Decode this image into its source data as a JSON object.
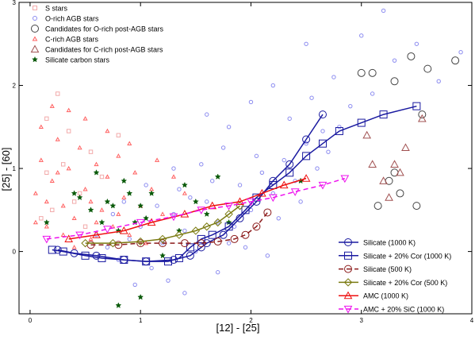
{
  "chart_data": {
    "type": "scatter",
    "title": "",
    "xlabel": "[12] - [25]",
    "ylabel": "[25] - [60]",
    "xlim": [
      -0.1,
      4.0
    ],
    "ylim": [
      -0.75,
      3.0
    ],
    "xticks": [
      "0",
      "1",
      "2",
      "3",
      "4"
    ],
    "yticks": [
      "0",
      "1",
      "2",
      "3"
    ],
    "grid": false,
    "scatter_legend_position": "top-left",
    "line_legend_position": "bottom-right",
    "scatter_series": [
      {
        "name": "S stars",
        "marker": "square",
        "color": "#f2aaaa",
        "points": [
          [
            0.15,
            0.95
          ],
          [
            0.3,
            1.05
          ],
          [
            0.45,
            0.7
          ],
          [
            0.2,
            0.5
          ],
          [
            0.55,
            1.2
          ],
          [
            0.1,
            0.4
          ],
          [
            0.65,
            0.9
          ],
          [
            0.35,
            1.45
          ],
          [
            0.25,
            1.9
          ],
          [
            0.5,
            0.3
          ],
          [
            0.8,
            1.4
          ],
          [
            0.15,
            1.6
          ],
          [
            0.4,
            0.6
          ]
        ]
      },
      {
        "name": "O-rich AGB stars",
        "marker": "circle",
        "color": "#8c8cf0",
        "points": [
          [
            0.6,
            0.2
          ],
          [
            0.7,
            0.05
          ],
          [
            0.8,
            -0.1
          ],
          [
            0.9,
            0.15
          ],
          [
            1.0,
            0.3
          ],
          [
            1.1,
            -0.2
          ],
          [
            1.2,
            0.1
          ],
          [
            1.3,
            0.45
          ],
          [
            1.4,
            0.25
          ],
          [
            1.5,
            0.0
          ],
          [
            1.6,
            0.6
          ],
          [
            1.7,
            0.35
          ],
          [
            1.8,
            0.1
          ],
          [
            1.9,
            0.8
          ],
          [
            2.0,
            0.5
          ],
          [
            2.1,
            0.95
          ],
          [
            2.2,
            0.7
          ],
          [
            2.3,
            1.1
          ],
          [
            2.4,
            0.85
          ],
          [
            2.5,
            1.3
          ],
          [
            2.6,
            1.0
          ],
          [
            2.7,
            1.2
          ],
          [
            2.8,
            1.5
          ],
          [
            1.25,
            -0.35
          ],
          [
            1.45,
            0.65
          ],
          [
            1.65,
            0.85
          ],
          [
            1.85,
            0.3
          ],
          [
            2.05,
            1.15
          ],
          [
            2.25,
            0.4
          ],
          [
            2.45,
            0.6
          ],
          [
            2.65,
            1.45
          ],
          [
            2.9,
            1.75
          ],
          [
            3.1,
            1.9
          ],
          [
            3.3,
            2.3
          ],
          [
            3.5,
            2.5
          ],
          [
            3.7,
            2.05
          ],
          [
            3.9,
            2.4
          ],
          [
            1.15,
            0.55
          ],
          [
            1.35,
            0.75
          ],
          [
            1.55,
            1.05
          ],
          [
            1.75,
            1.25
          ],
          [
            1.95,
            0.05
          ],
          [
            2.15,
            -0.05
          ],
          [
            0.95,
            -0.4
          ],
          [
            1.05,
            0.8
          ],
          [
            1.4,
            -0.5
          ],
          [
            1.7,
            -0.25
          ],
          [
            2.35,
            1.6
          ],
          [
            2.55,
            1.85
          ],
          [
            2.75,
            2.1
          ],
          [
            3.0,
            2.6
          ],
          [
            3.2,
            2.9
          ],
          [
            1.8,
            1.5
          ],
          [
            2.0,
            1.8
          ],
          [
            1.3,
            1.0
          ],
          [
            0.75,
            0.45
          ],
          [
            0.85,
            0.6
          ],
          [
            1.6,
            1.65
          ],
          [
            2.2,
            2.0
          ],
          [
            2.5,
            2.5
          ]
        ]
      },
      {
        "name": "Candidates for O-rich post-AGB stars",
        "marker": "circle-large",
        "color": "#444444",
        "points": [
          [
            3.0,
            2.15
          ],
          [
            3.1,
            2.15
          ],
          [
            3.3,
            2.05
          ],
          [
            3.45,
            2.35
          ],
          [
            3.6,
            2.2
          ],
          [
            3.85,
            2.3
          ],
          [
            3.55,
            1.65
          ],
          [
            3.25,
            0.85
          ],
          [
            3.35,
            0.7
          ],
          [
            3.15,
            0.55
          ],
          [
            3.5,
            0.55
          ],
          [
            3.3,
            0.95
          ]
        ]
      },
      {
        "name": "C-rich AGB stars",
        "marker": "triangle",
        "color": "#ff6060",
        "points": [
          [
            0.05,
            0.7
          ],
          [
            0.1,
            1.1
          ],
          [
            0.15,
            0.3
          ],
          [
            0.2,
            0.85
          ],
          [
            0.25,
            1.35
          ],
          [
            0.3,
            0.55
          ],
          [
            0.35,
            1.0
          ],
          [
            0.4,
            0.4
          ],
          [
            0.45,
            1.25
          ],
          [
            0.5,
            0.75
          ],
          [
            0.55,
            0.15
          ],
          [
            0.6,
            1.05
          ],
          [
            0.65,
            0.5
          ],
          [
            0.7,
            0.9
          ],
          [
            0.75,
            0.3
          ],
          [
            0.8,
            1.15
          ],
          [
            0.85,
            0.65
          ],
          [
            0.9,
            0.2
          ],
          [
            0.95,
            0.95
          ],
          [
            1.0,
            0.55
          ],
          [
            1.05,
            0.1
          ],
          [
            1.1,
            0.75
          ],
          [
            1.2,
            0.45
          ],
          [
            1.3,
            0.9
          ],
          [
            0.1,
            1.5
          ],
          [
            0.2,
            1.75
          ],
          [
            0.3,
            0.2
          ],
          [
            0.5,
            1.6
          ],
          [
            0.7,
            1.45
          ],
          [
            0.4,
            0.05
          ],
          [
            0.15,
            0.6
          ],
          [
            0.25,
            0.95
          ],
          [
            0.6,
            0.35
          ],
          [
            0.8,
            0.45
          ],
          [
            1.15,
            1.1
          ],
          [
            1.4,
            0.7
          ],
          [
            0.05,
            0.35
          ],
          [
            0.35,
            1.7
          ],
          [
            0.55,
            0.6
          ],
          [
            0.9,
            1.3
          ]
        ]
      },
      {
        "name": "Candidates for C-rich post-AGB stars",
        "marker": "triangle-large",
        "color": "#a05050",
        "points": [
          [
            3.05,
            1.4
          ],
          [
            3.1,
            1.05
          ],
          [
            3.2,
            0.85
          ],
          [
            3.25,
            0.65
          ],
          [
            3.35,
            0.95
          ],
          [
            3.4,
            1.25
          ],
          [
            3.55,
            1.6
          ],
          [
            3.3,
            1.05
          ]
        ]
      },
      {
        "name": "Silicate carbon stars",
        "marker": "star",
        "color": "#0a5a0a",
        "points": [
          [
            0.15,
            0.35
          ],
          [
            0.4,
            0.7
          ],
          [
            0.45,
            0.65
          ],
          [
            0.55,
            0.5
          ],
          [
            0.6,
            0.95
          ],
          [
            0.65,
            0.35
          ],
          [
            0.7,
            0.6
          ],
          [
            0.75,
            0.55
          ],
          [
            0.8,
            0.25
          ],
          [
            0.85,
            0.85
          ],
          [
            0.9,
            0.7
          ],
          [
            0.95,
            0.35
          ],
          [
            1.0,
            0.55
          ],
          [
            1.05,
            0.4
          ],
          [
            1.1,
            0.7
          ],
          [
            1.2,
            -0.05
          ],
          [
            1.35,
            0.25
          ],
          [
            1.4,
            0.8
          ],
          [
            1.5,
            0.6
          ],
          [
            1.6,
            0.45
          ],
          [
            1.7,
            0.9
          ],
          [
            1.8,
            0.35
          ],
          [
            2.45,
            0.85
          ],
          [
            0.8,
            -0.65
          ],
          [
            1.0,
            -0.55
          ]
        ]
      }
    ],
    "line_series": [
      {
        "name": "Silicate (1000 K)",
        "color": "#1a1aa0",
        "dash": "solid",
        "marker": "circle",
        "points": [
          [
            0.25,
            0.02
          ],
          [
            0.4,
            -0.02
          ],
          [
            0.6,
            -0.05
          ],
          [
            0.85,
            -0.1
          ],
          [
            1.05,
            -0.12
          ],
          [
            1.3,
            -0.1
          ],
          [
            1.45,
            -0.05
          ],
          [
            1.55,
            0.05
          ],
          [
            1.6,
            0.1
          ],
          [
            1.75,
            0.2
          ],
          [
            1.9,
            0.4
          ],
          [
            2.05,
            0.6
          ],
          [
            2.2,
            0.85
          ],
          [
            2.35,
            1.05
          ],
          [
            2.5,
            1.35
          ],
          [
            2.65,
            1.65
          ]
        ]
      },
      {
        "name": "Silicate + 20% Cor (1000 K)",
        "color": "#1a1aa0",
        "dash": "solid",
        "marker": "square",
        "points": [
          [
            0.2,
            0.02
          ],
          [
            0.3,
            0.0
          ],
          [
            0.5,
            -0.05
          ],
          [
            0.65,
            -0.08
          ],
          [
            0.85,
            -0.1
          ],
          [
            1.05,
            -0.12
          ],
          [
            1.25,
            -0.12
          ],
          [
            1.35,
            -0.08
          ],
          [
            1.45,
            0.05
          ],
          [
            1.55,
            0.15
          ],
          [
            1.65,
            0.2
          ],
          [
            1.8,
            0.3
          ],
          [
            1.95,
            0.5
          ],
          [
            2.05,
            0.65
          ],
          [
            2.2,
            0.8
          ],
          [
            2.35,
            0.95
          ],
          [
            2.5,
            1.15
          ],
          [
            2.65,
            1.3
          ],
          [
            2.8,
            1.45
          ],
          [
            3.0,
            1.55
          ],
          [
            3.2,
            1.65
          ],
          [
            3.5,
            1.75
          ]
        ]
      },
      {
        "name": "Silicate (500 K)",
        "color": "#8b1a1a",
        "dash": "dashed",
        "marker": "circle",
        "points": [
          [
            0.55,
            0.08
          ],
          [
            0.8,
            0.08
          ],
          [
            1.0,
            0.1
          ],
          [
            1.2,
            0.1
          ],
          [
            1.4,
            0.1
          ],
          [
            1.55,
            0.1
          ],
          [
            1.7,
            0.12
          ],
          [
            1.85,
            0.15
          ],
          [
            1.95,
            0.2
          ],
          [
            2.05,
            0.3
          ],
          [
            2.15,
            0.47
          ]
        ]
      },
      {
        "name": "Silicate + 20% Cor (500 K)",
        "color": "#7a7a10",
        "dash": "solid",
        "marker": "diamond",
        "points": [
          [
            0.5,
            0.1
          ],
          [
            0.75,
            0.1
          ],
          [
            1.0,
            0.12
          ],
          [
            1.2,
            0.15
          ],
          [
            1.35,
            0.2
          ],
          [
            1.5,
            0.25
          ],
          [
            1.6,
            0.3
          ],
          [
            1.7,
            0.35
          ],
          [
            1.8,
            0.45
          ],
          [
            1.9,
            0.55
          ]
        ]
      },
      {
        "name": "AMC (1000 K)",
        "color": "#ee1010",
        "dash": "solid",
        "marker": "triangle",
        "points": [
          [
            0.35,
            0.15
          ],
          [
            0.6,
            0.2
          ],
          [
            0.85,
            0.25
          ],
          [
            1.1,
            0.35
          ],
          [
            1.4,
            0.45
          ],
          [
            1.65,
            0.55
          ],
          [
            1.9,
            0.6
          ],
          [
            2.1,
            0.7
          ],
          [
            2.3,
            0.8
          ],
          [
            2.5,
            0.88
          ]
        ]
      },
      {
        "name": "AMC + 20% SiC (1000 K)",
        "color": "#ee10ee",
        "dash": "dashed",
        "marker": "triangle-down",
        "points": [
          [
            0.15,
            0.15
          ],
          [
            0.45,
            0.2
          ],
          [
            0.7,
            0.27
          ],
          [
            1.0,
            0.35
          ],
          [
            1.3,
            0.42
          ],
          [
            1.55,
            0.5
          ],
          [
            1.8,
            0.55
          ],
          [
            2.0,
            0.6
          ],
          [
            2.2,
            0.65
          ],
          [
            2.4,
            0.72
          ],
          [
            2.65,
            0.8
          ],
          [
            2.85,
            0.88
          ]
        ]
      }
    ]
  }
}
